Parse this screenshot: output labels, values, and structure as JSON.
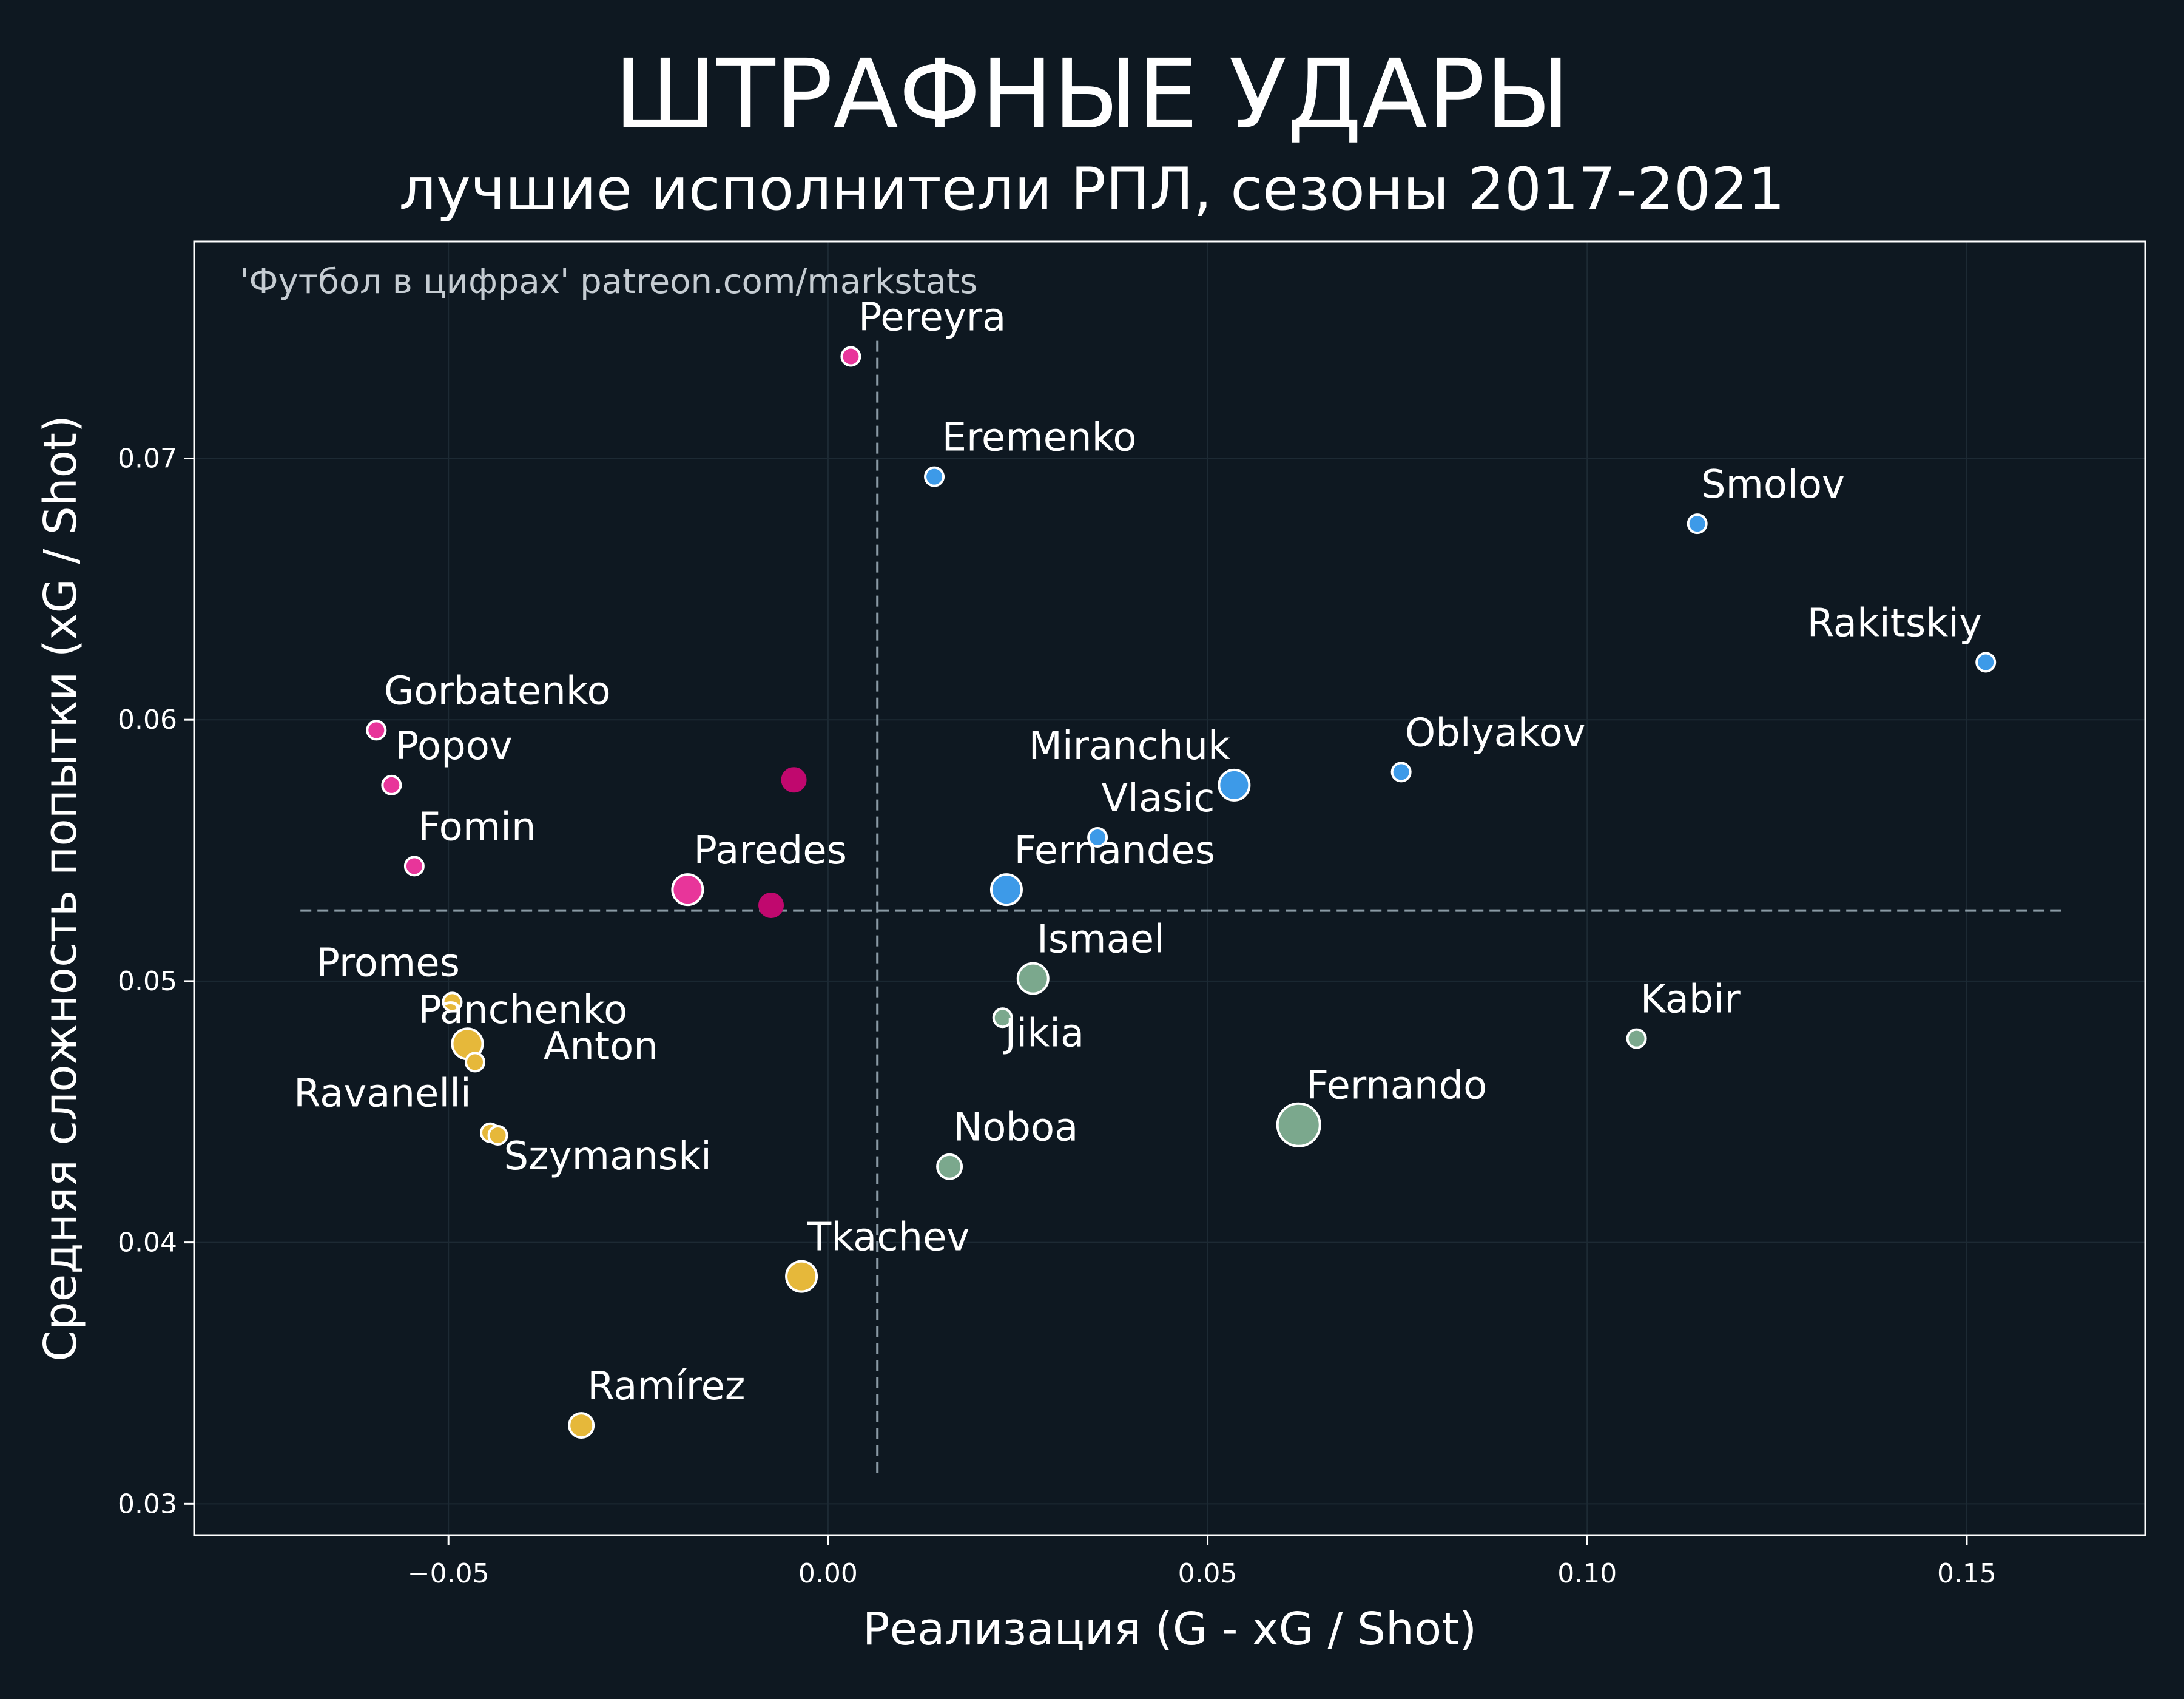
{
  "chart_data": {
    "type": "scatter",
    "title": "ШТРАФНЫЕ УДАРЫ",
    "subtitle": "лучшие исполнители РПЛ, сезоны 2017-2021",
    "credit": "'Футбол в цифрах' patreon.com/markstats",
    "xlabel": "Реализация (G - xG / Shot)",
    "ylabel": "Средняя сложность попытки (xG / Shot)",
    "xlim": [
      -0.0835,
      0.1735
    ],
    "ylim": [
      0.0288,
      0.0783
    ],
    "x_ticks": [
      -0.05,
      0.0,
      0.05,
      0.1,
      0.15
    ],
    "x_tick_labels": [
      "−0.05",
      "0.00",
      "0.05",
      "0.10",
      "0.15"
    ],
    "y_ticks": [
      0.03,
      0.04,
      0.05,
      0.06,
      0.07
    ],
    "y_tick_labels": [
      "0.03",
      "0.04",
      "0.05",
      "0.06",
      "0.07"
    ],
    "grid": true,
    "reference_lines": {
      "x_mean": 0.0065,
      "y_mean": 0.0527
    },
    "colors": {
      "pink": "#e8359a",
      "blue": "#3d9ae8",
      "green": "#7ba88d",
      "yellow": "#e6b83a",
      "magenta": "#c0086e",
      "background": "#0e1821",
      "frame": "#ffffff",
      "refline": "#8a9aa5",
      "grid": "#1d2a34"
    },
    "points": [
      {
        "label": "Pereyra",
        "x": 0.003,
        "y": 0.0739,
        "color": "pink",
        "size": 1,
        "anchor": "start",
        "dx": 0.001,
        "dy": 0.001
      },
      {
        "label": "Eremenko",
        "x": 0.014,
        "y": 0.0693,
        "color": "blue",
        "size": 1,
        "anchor": "start",
        "dx": 0.001,
        "dy": 0.001
      },
      {
        "label": "Smolov",
        "x": 0.1145,
        "y": 0.0675,
        "color": "blue",
        "size": 1,
        "anchor": "start",
        "dx": 0.0005,
        "dy": 0.001
      },
      {
        "label": "Rakitskiy",
        "x": 0.1525,
        "y": 0.0622,
        "color": "blue",
        "size": 1,
        "anchor": "end",
        "dx": -0.0005,
        "dy": 0.001
      },
      {
        "label": "Gorbatenko",
        "x": -0.0595,
        "y": 0.0596,
        "color": "pink",
        "size": 1,
        "anchor": "start",
        "dx": 0.001,
        "dy": 0.001
      },
      {
        "label": "Popov",
        "x": -0.0575,
        "y": 0.0575,
        "color": "pink",
        "size": 1,
        "anchor": "start",
        "dx": 0.0005,
        "dy": 0.001
      },
      {
        "label": "Fomin",
        "x": -0.0545,
        "y": 0.0544,
        "color": "pink",
        "size": 1,
        "anchor": "start",
        "dx": 0.0005,
        "dy": 0.001
      },
      {
        "label": "Paredes",
        "x": -0.0185,
        "y": 0.0535,
        "color": "pink",
        "size": 2,
        "anchor": "start",
        "dx": 0.0008,
        "dy": 0.001
      },
      {
        "label": "",
        "x": -0.0045,
        "y": 0.0577,
        "color": "magenta",
        "size": 1.5
      },
      {
        "label": "",
        "x": -0.0075,
        "y": 0.0529,
        "color": "magenta",
        "size": 1.5
      },
      {
        "label": "Miranchuk",
        "x": 0.0535,
        "y": 0.0575,
        "color": "blue",
        "size": 2,
        "anchor": "end",
        "dx": -0.0005,
        "dy": 0.001
      },
      {
        "label": "Oblyakov",
        "x": 0.0755,
        "y": 0.058,
        "color": "blue",
        "size": 1,
        "anchor": "start",
        "dx": 0.0005,
        "dy": 0.001
      },
      {
        "label": "Vlasic",
        "x": 0.0355,
        "y": 0.0555,
        "color": "blue",
        "size": 1,
        "anchor": "start",
        "dx": 0.0005,
        "dy": 0.001
      },
      {
        "label": "Fernandes",
        "x": 0.0235,
        "y": 0.0535,
        "color": "blue",
        "size": 2,
        "anchor": "start",
        "dx": 0.001,
        "dy": 0.001
      },
      {
        "label": "Ismael",
        "x": 0.027,
        "y": 0.0501,
        "color": "green",
        "size": 2,
        "anchor": "start",
        "dx": 0.0005,
        "dy": 0.001
      },
      {
        "label": "Jikia",
        "x": 0.023,
        "y": 0.0486,
        "color": "green",
        "size": 1,
        "anchor": "start",
        "dx": 0.0003,
        "dy": -0.0011
      },
      {
        "label": "Kabir",
        "x": 0.1065,
        "y": 0.0478,
        "color": "green",
        "size": 1,
        "anchor": "start",
        "dx": 0.0005,
        "dy": 0.001
      },
      {
        "label": "Fernando",
        "x": 0.062,
        "y": 0.0445,
        "color": "green",
        "size": 3,
        "anchor": "start",
        "dx": 0.001,
        "dy": 0.001
      },
      {
        "label": "Noboa",
        "x": 0.016,
        "y": 0.0429,
        "color": "green",
        "size": 1.5,
        "anchor": "start",
        "dx": 0.0005,
        "dy": 0.001
      },
      {
        "label": "Promes",
        "x": -0.0495,
        "y": 0.0492,
        "color": "yellow",
        "size": 1,
        "anchor": "end",
        "dx": 0.001,
        "dy": 0.001
      },
      {
        "label": "Panchenko",
        "x": -0.0475,
        "y": 0.0476,
        "color": "yellow",
        "size": 2,
        "anchor": "start",
        "dx": -0.0065,
        "dy": 0.0008
      },
      {
        "label": "Anton",
        "x": -0.0465,
        "y": 0.0469,
        "color": "yellow",
        "size": 1,
        "anchor": "start",
        "dx": 0.009,
        "dy": 0.0001
      },
      {
        "label": "Ravanelli",
        "x": -0.0445,
        "y": 0.0442,
        "color": "yellow",
        "size": 1,
        "anchor": "end",
        "dx": -0.0025,
        "dy": 0.001
      },
      {
        "label": "Szymanski",
        "x": -0.0435,
        "y": 0.0441,
        "color": "yellow",
        "size": 1,
        "anchor": "start",
        "dx": 0.0008,
        "dy": -0.0013
      },
      {
        "label": "Tkachev",
        "x": -0.0035,
        "y": 0.0387,
        "color": "yellow",
        "size": 2,
        "anchor": "start",
        "dx": 0.0008,
        "dy": 0.001
      },
      {
        "label": "Ramírez",
        "x": -0.0325,
        "y": 0.033,
        "color": "yellow",
        "size": 1.5,
        "anchor": "start",
        "dx": 0.0008,
        "dy": 0.001
      }
    ]
  }
}
